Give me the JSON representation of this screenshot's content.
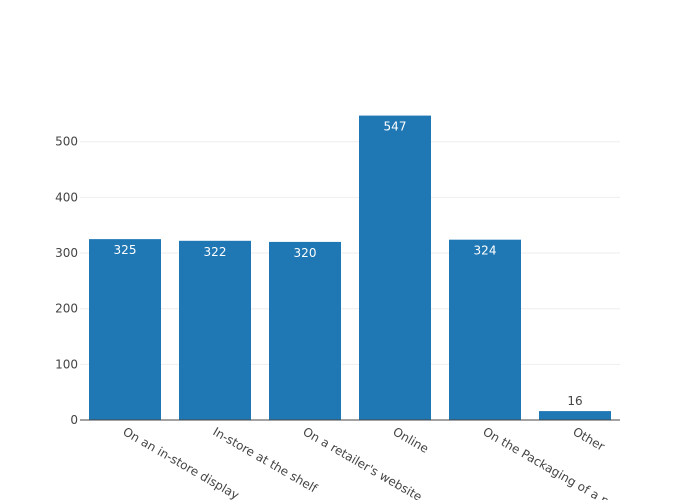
{
  "chart_data": {
    "type": "bar",
    "categories": [
      "On an in-store display",
      "In-store at the shelf",
      "On a retailer's website",
      "Online",
      "On the Packaging of a part",
      "Other"
    ],
    "values": [
      325,
      322,
      320,
      547,
      324,
      16
    ],
    "title": "",
    "xlabel": "",
    "ylabel": "",
    "ylim": [
      0,
      575
    ],
    "yticks": [
      0,
      100,
      200,
      300,
      400,
      500
    ],
    "grid": "horizontal",
    "legend": "none",
    "bar_color": "#1f77b4",
    "label_inside_color": "#ffffff",
    "label_outside_color": "#444444",
    "axis_color": "#444444",
    "grid_color": "#eeeeee"
  }
}
